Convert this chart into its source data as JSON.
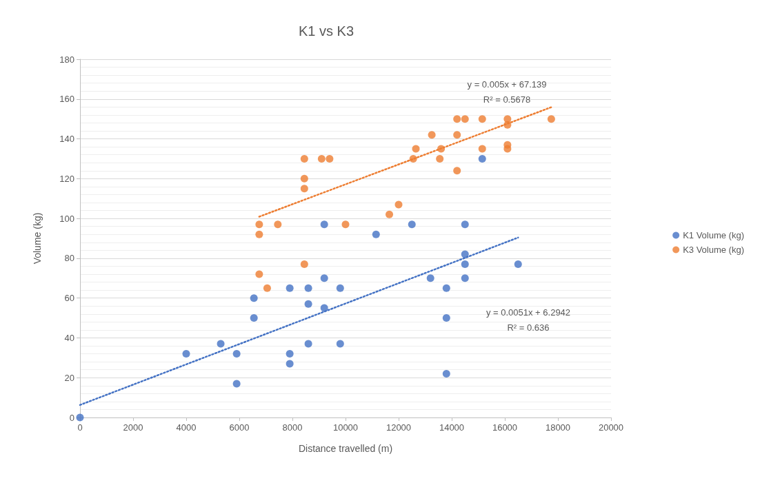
{
  "chart_data": {
    "type": "scatter",
    "title": "K1 vs K3",
    "xlabel": "Distance travelled (m)",
    "ylabel": "Volume (kg)",
    "xlim": [
      0,
      20000
    ],
    "xticks": [
      0,
      2000,
      4000,
      6000,
      8000,
      10000,
      12000,
      14000,
      16000,
      18000,
      20000
    ],
    "ylim": [
      0,
      180
    ],
    "yticks": [
      0,
      20,
      40,
      60,
      80,
      100,
      120,
      140,
      160,
      180
    ],
    "grid": "y",
    "legend": "right",
    "series": [
      {
        "name": "K1 Volume (kg)",
        "color": "#4472c4",
        "marker": "circle",
        "x": [
          0,
          4000,
          5300,
          5900,
          5900,
          6550,
          6550,
          7900,
          7900,
          7900,
          8600,
          8600,
          8600,
          9200,
          9200,
          9200,
          9800,
          9800,
          11150,
          12500,
          13200,
          13800,
          13800,
          13800,
          14500,
          14500,
          14500,
          14500,
          15150,
          16500
        ],
        "values": [
          0,
          32,
          37,
          32,
          17,
          50,
          60,
          32,
          27,
          65,
          65,
          57,
          37,
          70,
          55,
          97,
          65,
          37,
          92,
          97,
          70,
          65,
          50,
          22,
          82,
          77,
          70,
          97,
          130,
          77
        ]
      },
      {
        "name": "K3 Volume (kg)",
        "color": "#ed7d31",
        "marker": "circle",
        "x": [
          6750,
          6750,
          6750,
          7050,
          7450,
          8450,
          8450,
          8450,
          8450,
          9100,
          9400,
          10000,
          11650,
          12000,
          12550,
          12650,
          13250,
          13550,
          13600,
          14200,
          14200,
          14200,
          14500,
          15150,
          15150,
          16100,
          16100,
          16100,
          16100,
          17750
        ],
        "values": [
          97,
          92,
          72,
          65,
          97,
          130,
          120,
          115,
          77,
          130,
          130,
          97,
          102,
          107,
          130,
          135,
          142,
          130,
          135,
          124,
          142,
          150,
          150,
          150,
          135,
          150,
          147,
          137,
          135,
          150
        ]
      },
      {
        "type": "line",
        "color": "#4472c4",
        "line_style": "dotted",
        "marker": "none",
        "x": [
          0,
          16500
        ],
        "values": [
          6.3,
          90.4
        ]
      },
      {
        "type": "line",
        "color": "#ed7d31",
        "line_style": "dotted",
        "marker": "none",
        "x": [
          6750,
          17750
        ],
        "values": [
          100.9,
          155.9
        ]
      }
    ],
    "annotations": [
      "y = 0.005x + 67.139\nR² = 0.5678",
      "y = 0.0051x + 6.2942\nR² = 0.636"
    ]
  }
}
